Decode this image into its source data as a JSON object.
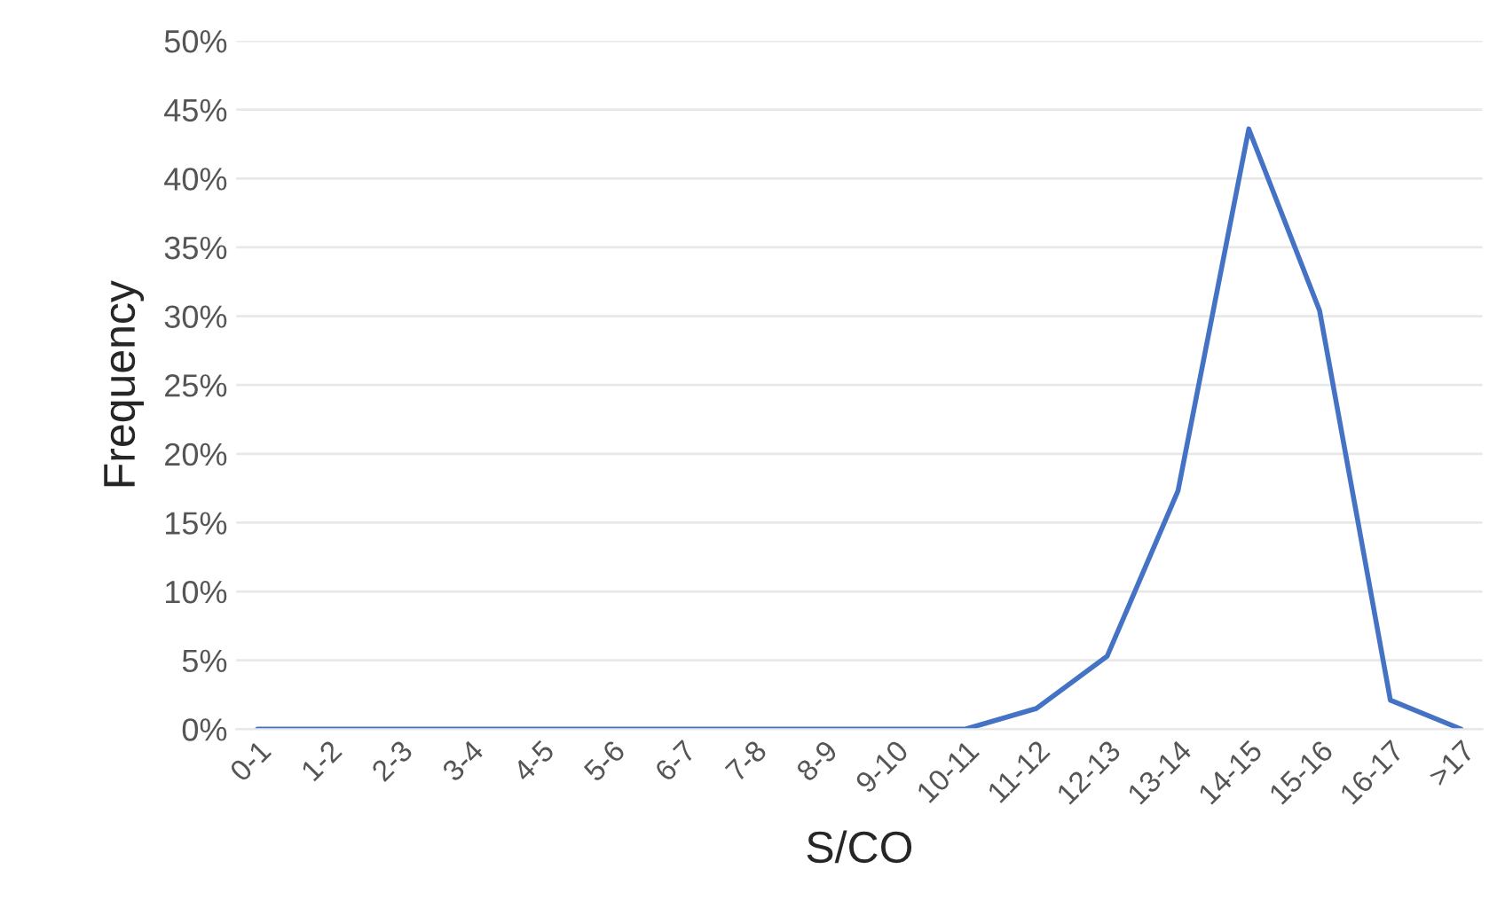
{
  "chart_data": {
    "type": "line",
    "xlabel": "S/CO",
    "ylabel": "Frequency",
    "categories": [
      "0-1",
      "1-2",
      "2-3",
      "3-4",
      "4-5",
      "5-6",
      "6-7",
      "7-8",
      "8-9",
      "9-10",
      "10-11",
      "11-12",
      "12-13",
      "13-14",
      "14-15",
      "15-16",
      "16-17",
      ">17"
    ],
    "series": [
      {
        "color": "#4472c4",
        "values": [
          0,
          0,
          0,
          0,
          0,
          0,
          0,
          0,
          0,
          0,
          0,
          1.5,
          5.3,
          17.3,
          43.6,
          30.4,
          2.1,
          0
        ]
      }
    ],
    "ylim": [
      0,
      50
    ],
    "yticks": [
      {
        "value": 0,
        "label": "0%"
      },
      {
        "value": 5,
        "label": "5%"
      },
      {
        "value": 10,
        "label": "10%"
      },
      {
        "value": 15,
        "label": "15%"
      },
      {
        "value": 20,
        "label": "20%"
      },
      {
        "value": 25,
        "label": "25%"
      },
      {
        "value": 30,
        "label": "30%"
      },
      {
        "value": 35,
        "label": "35%"
      },
      {
        "value": 40,
        "label": "40%"
      },
      {
        "value": 45,
        "label": "45%"
      },
      {
        "value": 50,
        "label": "50%"
      }
    ],
    "grid": "y",
    "marker": "none",
    "line_style": "solid"
  }
}
